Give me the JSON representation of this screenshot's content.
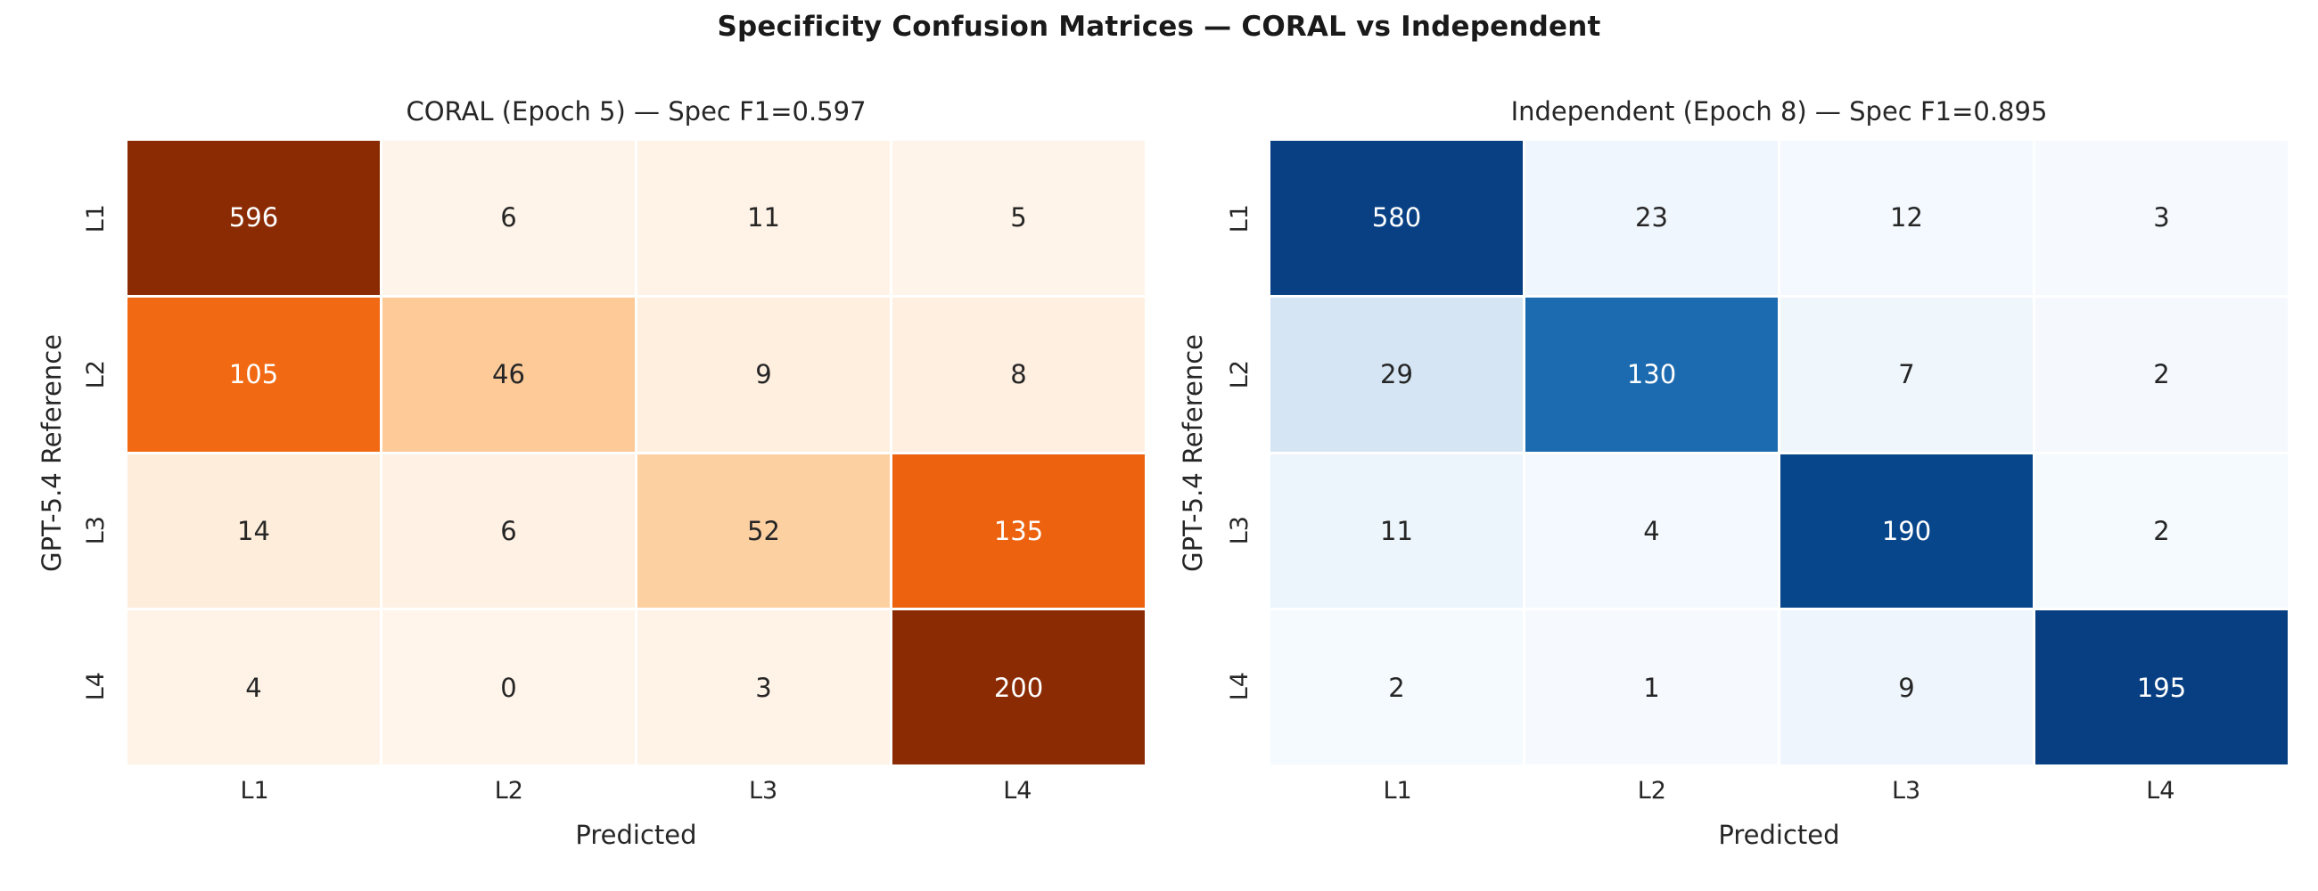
{
  "figure": {
    "suptitle": "Specificity Confusion Matrices — CORAL vs Independent",
    "background": "#ffffff"
  },
  "chart_data": [
    {
      "type": "heatmap",
      "title": "CORAL (Epoch 5) — Spec F1=0.597",
      "xlabel": "Predicted",
      "ylabel": "GPT-5.4 Reference",
      "x_categories": [
        "L1",
        "L2",
        "L3",
        "L4"
      ],
      "y_categories": [
        "L1",
        "L2",
        "L3",
        "L4"
      ],
      "values": [
        [
          596,
          6,
          11,
          5
        ],
        [
          105,
          46,
          9,
          8
        ],
        [
          14,
          6,
          52,
          135
        ],
        [
          4,
          0,
          3,
          200
        ]
      ],
      "colormap": "Oranges",
      "normalization": "row-sum",
      "annotations": true,
      "grid": false,
      "legend": "none"
    },
    {
      "type": "heatmap",
      "title": "Independent (Epoch 8) — Spec F1=0.895",
      "xlabel": "Predicted",
      "ylabel": "GPT-5.4 Reference",
      "x_categories": [
        "L1",
        "L2",
        "L3",
        "L4"
      ],
      "y_categories": [
        "L1",
        "L2",
        "L3",
        "L4"
      ],
      "values": [
        [
          580,
          23,
          12,
          3
        ],
        [
          29,
          130,
          7,
          2
        ],
        [
          11,
          4,
          190,
          2
        ],
        [
          2,
          1,
          9,
          195
        ]
      ],
      "colormap": "Blues",
      "normalization": "row-sum",
      "annotations": true,
      "grid": false,
      "legend": "none"
    }
  ],
  "colormaps": {
    "Oranges": [
      "#fff5eb",
      "#fee6ce",
      "#fdd0a2",
      "#fdae6b",
      "#fd8d3c",
      "#f16913",
      "#d94801",
      "#a63603",
      "#7f2704"
    ],
    "Blues": [
      "#f7fbff",
      "#deebf7",
      "#c6dbef",
      "#9ecae1",
      "#6baed6",
      "#4292c6",
      "#2171b5",
      "#08519c",
      "#08306b"
    ]
  },
  "annotation_text_colors": {
    "light": "#ffffff",
    "dark": "#262626"
  }
}
